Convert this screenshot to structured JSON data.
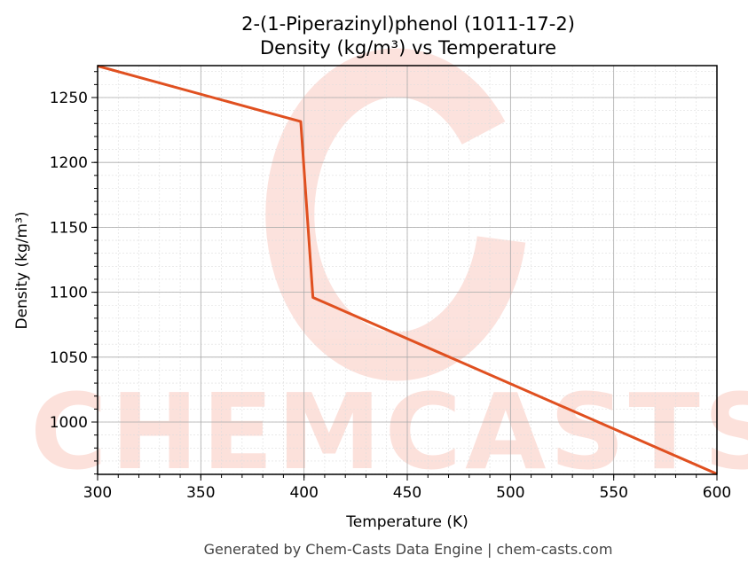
{
  "chart_data": {
    "type": "line",
    "title": "2-(1-Piperazinyl)phenol (1011-17-2)",
    "subtitle": "Density (kg/m³) vs Temperature",
    "xlabel": "Temperature (K)",
    "ylabel": "Density (kg/m³)",
    "xlim": [
      300,
      600
    ],
    "ylim": [
      959.7,
      1274.6
    ],
    "xticks": [
      300,
      350,
      400,
      450,
      500,
      550,
      600
    ],
    "yticks": [
      1000,
      1050,
      1100,
      1150,
      1200,
      1250
    ],
    "grid": true,
    "series": [
      {
        "name": "Density",
        "color": "#e05020",
        "x": [
          300,
          398.4,
          404.3,
          600
        ],
        "y": [
          1274.3,
          1231.5,
          1096,
          960
        ]
      }
    ]
  },
  "watermark": "CHEMCASTS",
  "footer": "Generated by Chem-Casts Data Engine | chem-casts.com"
}
